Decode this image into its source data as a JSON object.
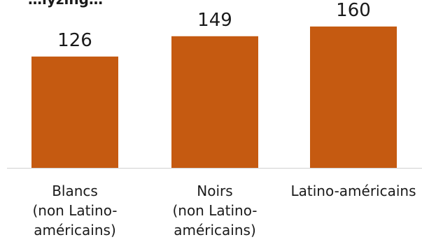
{
  "chart_data": {
    "type": "bar",
    "title": "…lyzing…",
    "categories": [
      [
        "Blancs",
        "(non Latino-",
        "américains)"
      ],
      [
        "Noirs",
        "(non Latino-",
        "américains)"
      ],
      [
        "Latino-américains"
      ]
    ],
    "values": [
      126,
      149,
      160
    ],
    "ylim": [
      0,
      190
    ],
    "grid": false,
    "legend": "none",
    "colors": {
      "bar": "#C55A11",
      "axis": "#d0d0d0"
    }
  }
}
